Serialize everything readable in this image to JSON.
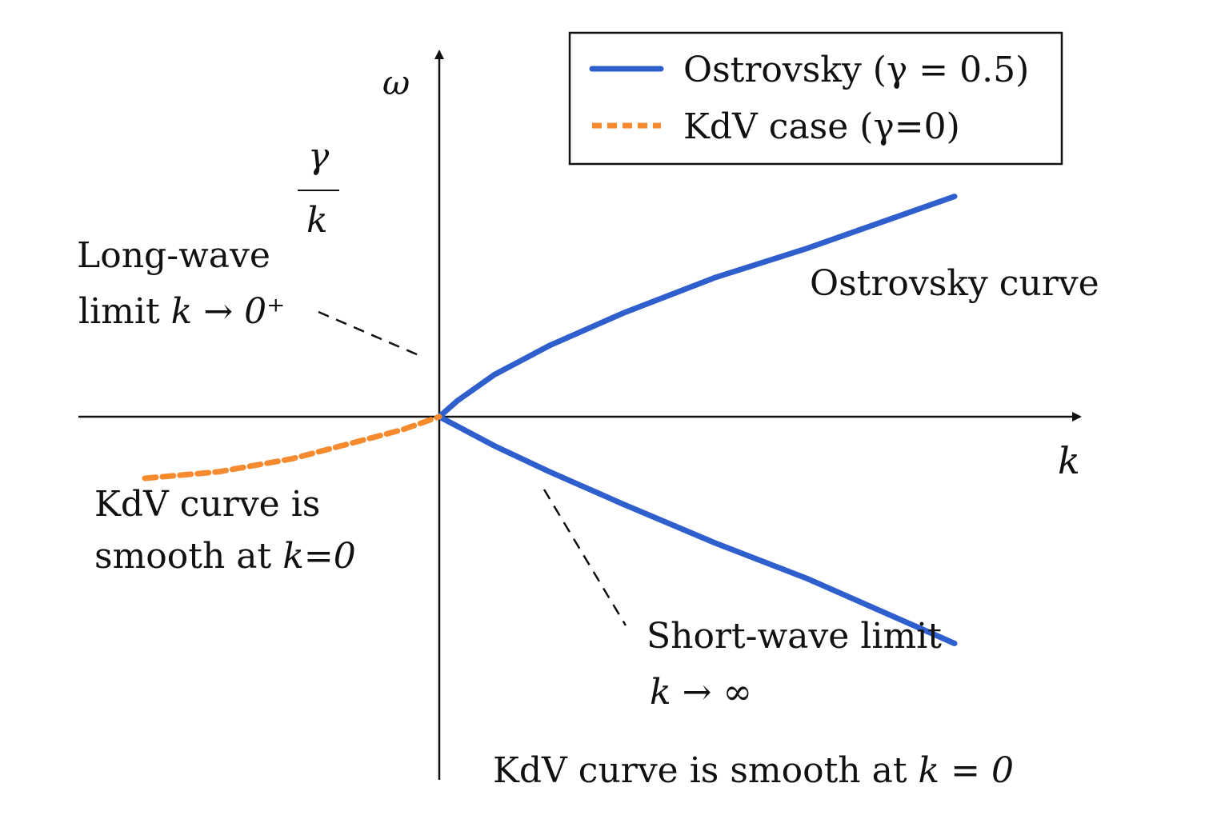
{
  "chart_data": {
    "type": "line",
    "title": "",
    "xlabel": "k",
    "ylabel": "ω",
    "xlim": [
      -1.0,
      1.4
    ],
    "ylim": [
      -0.9,
      0.85
    ],
    "grid": false,
    "legend": {
      "placement": "top-right"
    },
    "colors": {
      "ostrovsky": "#2f5fcc",
      "kdv": "#f58a2e"
    },
    "series": [
      {
        "name": "Ostrovsky (γ = 0.5)",
        "style": "solid",
        "color": "#2f5fcc",
        "branches": [
          {
            "x": [
              0.0,
              0.05,
              0.15,
              0.3,
              0.5,
              0.75,
              1.0,
              1.4
            ],
            "y": [
              0.0,
              0.05,
              0.13,
              0.22,
              0.32,
              0.43,
              0.52,
              0.68
            ]
          },
          {
            "x": [
              0.0,
              0.05,
              0.15,
              0.3,
              0.5,
              0.75,
              1.0,
              1.4
            ],
            "y": [
              0.0,
              -0.03,
              -0.09,
              -0.17,
              -0.27,
              -0.39,
              -0.5,
              -0.7
            ]
          }
        ]
      },
      {
        "name": "KdV case (γ=0)",
        "style": "dashed",
        "color": "#f58a2e",
        "branches": [
          {
            "x": [
              -0.8,
              -0.6,
              -0.4,
              -0.2,
              -0.1,
              0.0
            ],
            "y": [
              -0.19,
              -0.17,
              -0.13,
              -0.07,
              -0.04,
              0.0
            ]
          }
        ]
      }
    ],
    "annotations": {
      "gamma_over_k_numerator": "γ",
      "gamma_over_k_denominator": "k",
      "long_wave_line1": "Long-wave",
      "long_wave_line2_prefix": "limit ",
      "long_wave_line2_math": "k → 0⁺",
      "ostrovsky_curve": "Ostrovsky curve",
      "kdv_smooth_line1": "KdV curve is",
      "kdv_smooth_line2_prefix": "smooth at ",
      "kdv_smooth_line2_math": "k=0",
      "short_wave_line1": "Short-wave limit",
      "short_wave_line2": "k → ∞",
      "bottom_caption_prefix": "KdV curve is smooth at ",
      "bottom_caption_math": "k = 0"
    }
  }
}
